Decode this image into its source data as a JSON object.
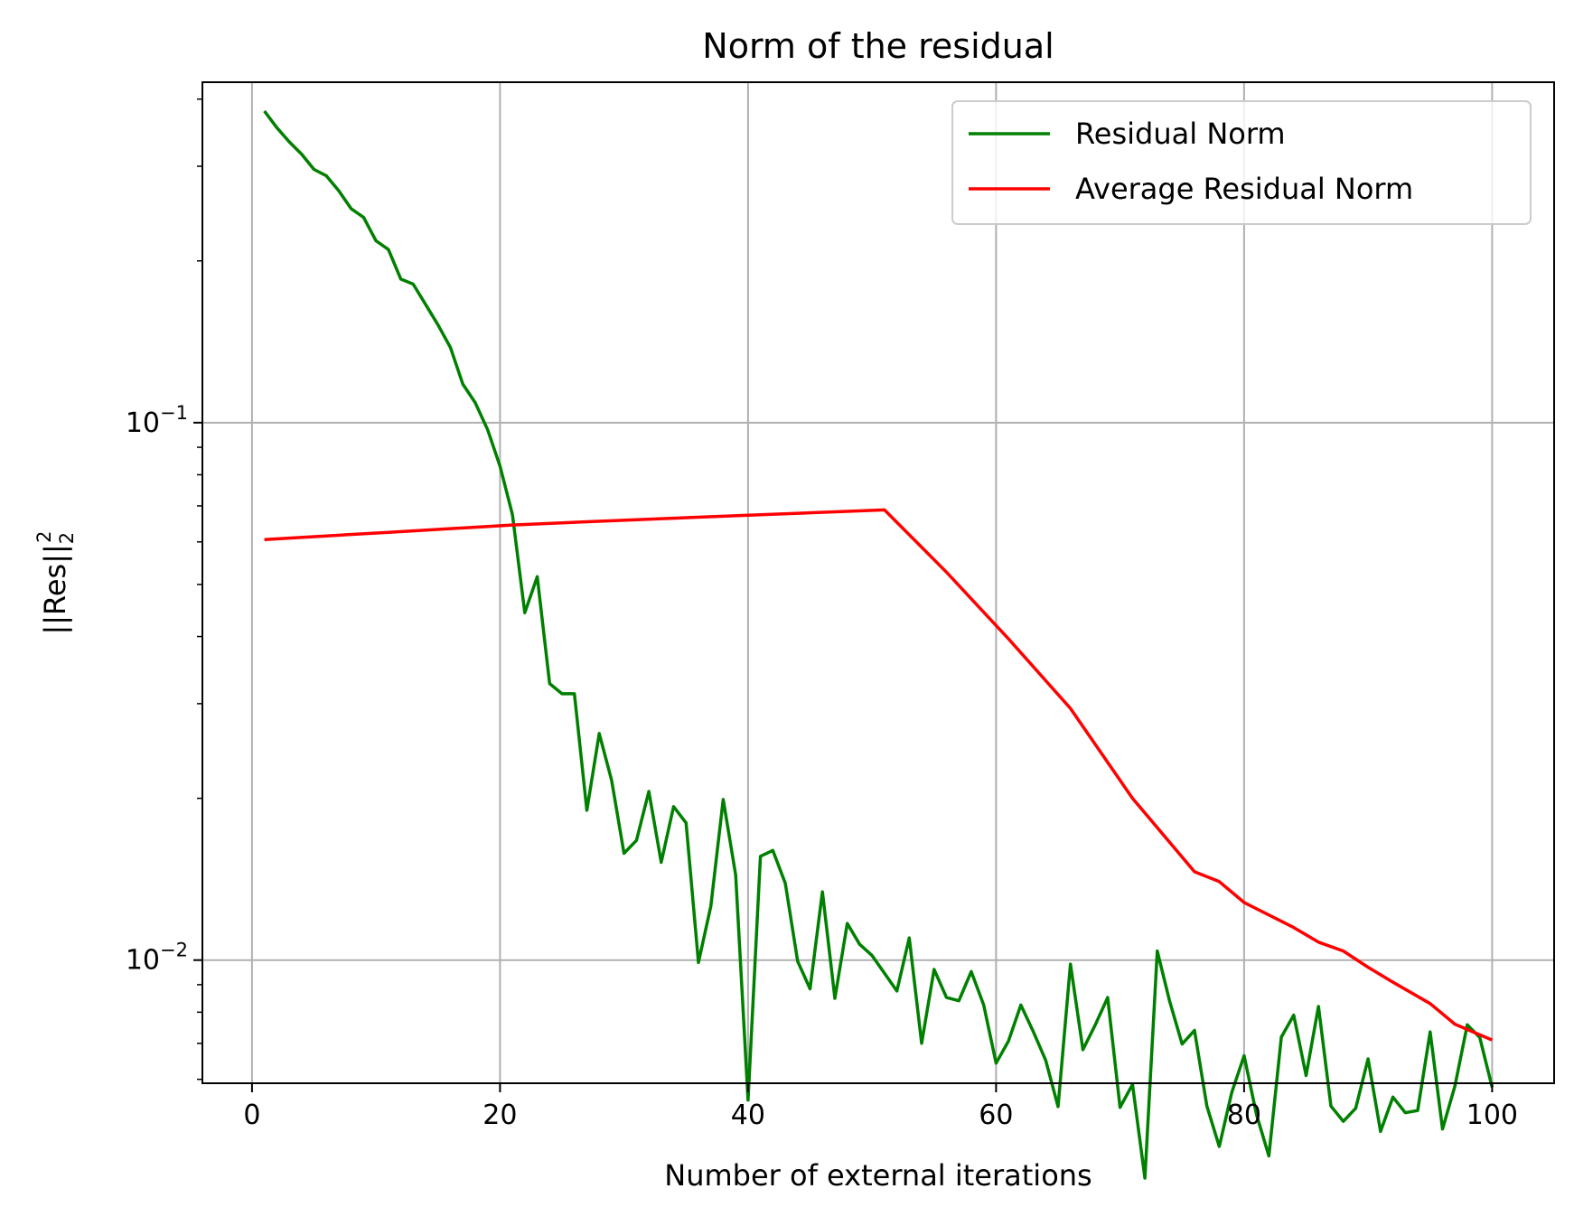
{
  "chart_data": {
    "type": "line",
    "title": "Norm of the residual",
    "xlabel": "Number of external iterations",
    "ylabel": "||Res||",
    "ylabel_sup": "2",
    "ylabel_sub": "2",
    "xlim": [
      -4,
      105
    ],
    "ylim": [
      0.0059,
      0.43
    ],
    "yscale": "log",
    "grid": true,
    "legend_position": "top-right",
    "x_ticks": [
      0,
      20,
      40,
      60,
      80,
      100
    ],
    "y_major_ticks": [
      {
        "value": 0.1,
        "label": "10",
        "exp": "−1"
      },
      {
        "value": 0.01,
        "label": "10",
        "exp": "−2"
      }
    ],
    "series": [
      {
        "name": "Residual Norm",
        "color": "#008000",
        "x": [
          1,
          2,
          3,
          4,
          5,
          6,
          7,
          8,
          9,
          10,
          11,
          12,
          13,
          14,
          15,
          16,
          17,
          18,
          19,
          20,
          21,
          22,
          23,
          24,
          25,
          26,
          27,
          28,
          29,
          30,
          31,
          32,
          33,
          34,
          35,
          36,
          37,
          38,
          39,
          40,
          41,
          42,
          43,
          44,
          45,
          46,
          47,
          48,
          49,
          50,
          51,
          52,
          53,
          54,
          55,
          56,
          57,
          58,
          59,
          60,
          61,
          62,
          63,
          64,
          65,
          66,
          67,
          68,
          69,
          70,
          71,
          72,
          73,
          74,
          75,
          76,
          77,
          78,
          79,
          80,
          81,
          82,
          83,
          84,
          85,
          86,
          87,
          88,
          89,
          90,
          91,
          92,
          93,
          94,
          95,
          96,
          97,
          98,
          99,
          100
        ],
        "values": [
          0.38,
          0.354,
          0.333,
          0.316,
          0.296,
          0.288,
          0.27,
          0.25,
          0.241,
          0.218,
          0.21,
          0.185,
          0.181,
          0.166,
          0.152,
          0.138,
          0.118,
          0.109,
          0.097,
          0.083,
          0.0675,
          0.0443,
          0.0517,
          0.0327,
          0.0313,
          0.0313,
          0.019,
          0.0264,
          0.0216,
          0.0158,
          0.0167,
          0.0206,
          0.0152,
          0.0193,
          0.018,
          0.0099,
          0.0126,
          0.0199,
          0.0144,
          0.00549,
          0.0156,
          0.016,
          0.0139,
          0.00995,
          0.00884,
          0.0134,
          0.00849,
          0.0117,
          0.0107,
          0.0102,
          0.00945,
          0.00876,
          0.011,
          0.007,
          0.00961,
          0.00852,
          0.0084,
          0.00952,
          0.00825,
          0.00643,
          0.00707,
          0.00825,
          0.00736,
          0.00651,
          0.00534,
          0.00983,
          0.00681,
          0.00758,
          0.00852,
          0.00532,
          0.00587,
          0.00393,
          0.0104,
          0.00838,
          0.00698,
          0.0074,
          0.00535,
          0.0045,
          0.00567,
          0.00664,
          0.00516,
          0.00432,
          0.00719,
          0.0079,
          0.0061,
          0.0082,
          0.00535,
          0.00501,
          0.0053,
          0.00655,
          0.0048,
          0.00556,
          0.0052,
          0.00525,
          0.00735,
          0.00485,
          0.00583,
          0.00758,
          0.00718,
          0.0058
        ]
      },
      {
        "name": "Average Residual Norm",
        "color": "#ff0000",
        "x": [
          1,
          11,
          21,
          31,
          41,
          51,
          56,
          61,
          66,
          71,
          76,
          78,
          80,
          84,
          86,
          88,
          90,
          92,
          95,
          97,
          100
        ],
        "values": [
          0.0606,
          0.0625,
          0.0645,
          0.066,
          0.0674,
          0.0688,
          0.0527,
          0.0396,
          0.0294,
          0.02,
          0.0146,
          0.014,
          0.0128,
          0.0115,
          0.0108,
          0.0104,
          0.0097,
          0.0091,
          0.0083,
          0.0076,
          0.0071
        ]
      }
    ]
  }
}
